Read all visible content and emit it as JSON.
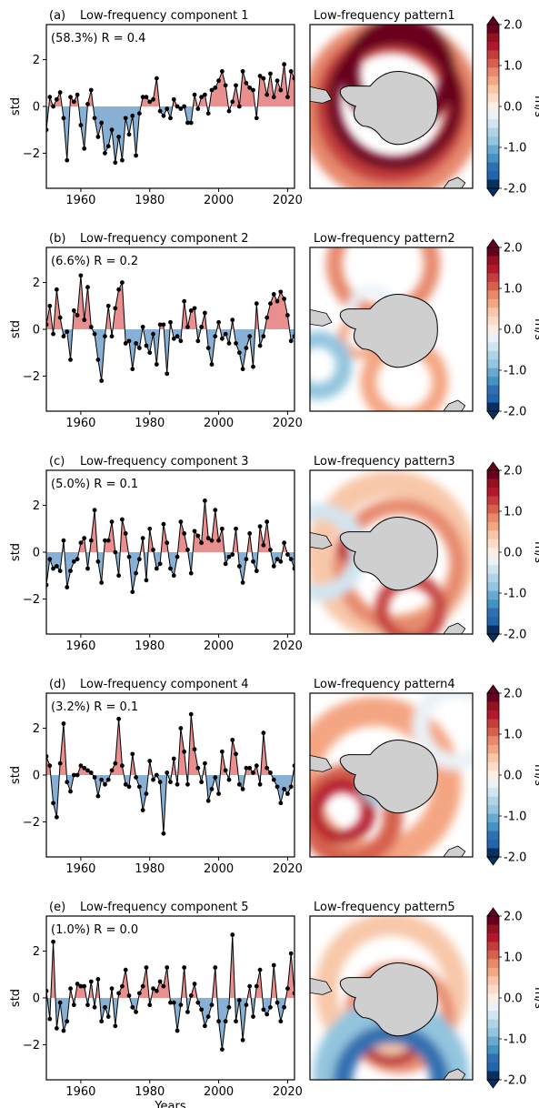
{
  "figure": {
    "xlabel": "Years",
    "colorbar": {
      "unit": "m/s",
      "ticks": [
        "2.0",
        "1.0",
        "0.0",
        "-1.0",
        "-2.0"
      ],
      "range": [
        -2.0,
        2.0
      ],
      "levels": 16,
      "colors_top_to_bottom": [
        "#67001f",
        "#94111f",
        "#b2182b",
        "#c43c3c",
        "#d6604d",
        "#e7896d",
        "#f4a582",
        "#f8c7a9",
        "#fddbc7",
        "#fdeee4",
        "#eaf2f7",
        "#d1e5f0",
        "#b0d3e6",
        "#92c5de",
        "#6aa9cf",
        "#4393c3",
        "#3070b0",
        "#2166ac",
        "#053061"
      ]
    }
  },
  "chart_data": [
    {
      "type": "area",
      "panel": "(a)",
      "title": "Low-frequency component 1",
      "annotation": "(58.3%) R = 0.4",
      "ylabel": "std",
      "xlim": [
        1950,
        2022
      ],
      "ylim": [
        -3.5,
        3.5
      ],
      "xticks": [
        1960,
        1980,
        2000,
        2020
      ],
      "yticks": [
        2,
        0,
        -2
      ],
      "x_start": 1950,
      "values": [
        -1.0,
        0.4,
        0.0,
        0.3,
        0.6,
        -0.5,
        -2.3,
        0.4,
        0.2,
        0.5,
        -0.8,
        -1.8,
        0.1,
        0.7,
        -0.5,
        -1.3,
        -0.7,
        -2.0,
        -1.7,
        -1.0,
        -2.4,
        -1.3,
        -2.3,
        -0.5,
        -1.2,
        -0.4,
        -2.1,
        -0.3,
        0.4,
        0.4,
        0.2,
        0.3,
        1.2,
        -0.2,
        -0.4,
        -0.1,
        -0.5,
        0.3,
        0.0,
        -0.1,
        0.0,
        -0.7,
        -0.7,
        0.5,
        -0.1,
        0.4,
        0.5,
        -0.3,
        0.7,
        0.8,
        1.1,
        1.5,
        0.9,
        -0.2,
        0.2,
        0.9,
        0.0,
        1.5,
        1.0,
        0.8,
        0.7,
        -0.5,
        1.3,
        1.2,
        0.5,
        1.4,
        0.4,
        1.1,
        0.7,
        1.8,
        0.4,
        1.5,
        1.2
      ]
    },
    {
      "type": "area",
      "panel": "(b)",
      "title": "Low-frequency component 2",
      "annotation": "(6.6%) R = 0.2",
      "ylabel": "std",
      "xlim": [
        1950,
        2022
      ],
      "ylim": [
        -3.5,
        3.5
      ],
      "xticks": [
        1960,
        1980,
        2000,
        2020
      ],
      "yticks": [
        2,
        0,
        -2
      ],
      "x_start": 1950,
      "values": [
        0.2,
        1.0,
        -0.2,
        1.7,
        0.5,
        -0.3,
        -0.1,
        -1.3,
        0.8,
        0.6,
        2.3,
        0.4,
        1.8,
        0.1,
        -0.2,
        -1.3,
        -2.2,
        -0.3,
        1.0,
        -0.3,
        0.9,
        1.7,
        2.0,
        -0.6,
        -0.5,
        -1.7,
        -0.6,
        -0.8,
        0.1,
        -0.7,
        -1.0,
        -0.2,
        -1.5,
        0.2,
        0.2,
        -1.9,
        0.3,
        -0.4,
        -0.3,
        -0.5,
        1.2,
        0.1,
        0.8,
        0.9,
        -0.5,
        0.1,
        0.7,
        -0.8,
        -1.5,
        -0.3,
        0.3,
        -0.4,
        -0.2,
        -0.6,
        0.4,
        -0.6,
        -1.0,
        -1.7,
        -0.8,
        -0.3,
        -1.6,
        1.1,
        -0.7,
        -0.3,
        0.5,
        1.1,
        1.5,
        1.2,
        1.6,
        1.3,
        0.6,
        -0.5,
        -0.3
      ]
    },
    {
      "type": "area",
      "panel": "(c)",
      "title": "Low-frequency component 3",
      "annotation": "(5.0%) R = 0.1",
      "ylabel": "std",
      "xlim": [
        1950,
        2022
      ],
      "ylim": [
        -3.5,
        3.5
      ],
      "xticks": [
        1960,
        1980,
        2000,
        2020
      ],
      "yticks": [
        2,
        0,
        -2
      ],
      "x_start": 1950,
      "values": [
        -1.4,
        -0.3,
        -0.7,
        -0.6,
        -0.8,
        0.5,
        -1.5,
        -0.8,
        -0.4,
        -0.3,
        0.4,
        0.6,
        -0.7,
        0.5,
        1.8,
        -0.4,
        -1.3,
        0.5,
        0.5,
        1.3,
        0.0,
        -1.0,
        1.4,
        0.8,
        -0.2,
        -1.7,
        -0.9,
        -0.3,
        0.6,
        -1.2,
        1.0,
        0.1,
        -0.7,
        -0.5,
        1.2,
        0.4,
        -0.7,
        -1.0,
        -0.2,
        1.3,
        0.8,
        0.1,
        -0.9,
        0.9,
        0.7,
        0.4,
        2.2,
        0.6,
        0.5,
        1.8,
        0.5,
        1.0,
        -0.5,
        -0.2,
        -0.1,
        1.0,
        -0.6,
        -1.3,
        -0.3,
        0.8,
        -0.4,
        -0.8,
        1.1,
        0.3,
        1.3,
        0.1,
        -0.6,
        -0.3,
        -0.4,
        0.4,
        -0.1,
        -0.3,
        -0.7
      ]
    },
    {
      "type": "area",
      "panel": "(d)",
      "title": "Low-frequency component 4",
      "annotation": "(3.2%) R = 0.1",
      "ylabel": "std",
      "xlim": [
        1950,
        2022
      ],
      "ylim": [
        -3.5,
        3.5
      ],
      "xticks": [
        1960,
        1980,
        2000,
        2020
      ],
      "yticks": [
        2,
        0,
        -2
      ],
      "x_start": 1950,
      "values": [
        0.8,
        0.4,
        -1.2,
        -1.8,
        0.5,
        2.2,
        -0.3,
        -0.7,
        0.0,
        0.0,
        0.4,
        0.3,
        0.2,
        0.1,
        -0.1,
        -0.9,
        -0.2,
        -0.4,
        -0.2,
        0.2,
        0.5,
        2.4,
        0.4,
        -0.4,
        -0.5,
        0.9,
        -0.1,
        -0.5,
        -1.5,
        -0.8,
        0.6,
        -0.2,
        0.0,
        -0.3,
        -2.5,
        0.1,
        -0.3,
        0.7,
        -0.4,
        2.0,
        1.0,
        -0.4,
        2.6,
        1.1,
        0.3,
        -0.3,
        0.5,
        -1.1,
        -0.6,
        -0.1,
        -0.8,
        1.0,
        0.2,
        -0.2,
        1.5,
        0.9,
        -0.4,
        -0.6,
        0.3,
        0.3,
        0.1,
        0.4,
        -0.4,
        1.8,
        0.3,
        0.1,
        -0.2,
        -0.5,
        -1.2,
        -0.6,
        -0.8,
        -0.5,
        0.4
      ]
    },
    {
      "type": "area",
      "panel": "(e)",
      "title": "Low-frequency component 5",
      "annotation": "(1.0%) R = 0.0",
      "ylabel": "std",
      "xlim": [
        1950,
        2022
      ],
      "ylim": [
        -3.5,
        3.5
      ],
      "xticks": [
        1960,
        1980,
        2000,
        2020
      ],
      "yticks": [
        2,
        0,
        -2
      ],
      "x_start": 1950,
      "values": [
        0.3,
        -0.9,
        2.4,
        -1.3,
        -0.2,
        -1.4,
        -1.0,
        0.4,
        -0.3,
        0.6,
        0.5,
        0.5,
        -0.3,
        0.7,
        -0.4,
        0.8,
        -1.0,
        -0.4,
        -0.8,
        0.4,
        -1.2,
        0.2,
        0.5,
        1.2,
        0.1,
        -0.4,
        -0.6,
        0.2,
        0.5,
        1.3,
        -0.3,
        0.4,
        0.3,
        0.7,
        0.5,
        1.3,
        -0.2,
        -0.2,
        -1.4,
        -0.3,
        1.3,
        -0.6,
        0.1,
        0.6,
        -0.2,
        -0.5,
        -1.2,
        -0.8,
        -0.3,
        1.3,
        -1.0,
        -2.2,
        -1.0,
        -0.4,
        2.7,
        -1.0,
        -0.1,
        -1.8,
        -0.3,
        0.5,
        -0.8,
        0.5,
        1.2,
        -0.5,
        -0.7,
        -0.4,
        1.4,
        -0.2,
        -1.0,
        -0.4,
        0.4,
        1.9,
        0.2
      ]
    }
  ],
  "maps": [
    {
      "title": "Low-frequency pattern1",
      "pattern": "ring-positive"
    },
    {
      "title": "Low-frequency pattern2",
      "pattern": "weak-mixed"
    },
    {
      "title": "Low-frequency pattern3",
      "pattern": "ring-positive-south"
    },
    {
      "title": "Low-frequency pattern4",
      "pattern": "spiral-west"
    },
    {
      "title": "Low-frequency pattern5",
      "pattern": "dipole-south-negative"
    }
  ]
}
